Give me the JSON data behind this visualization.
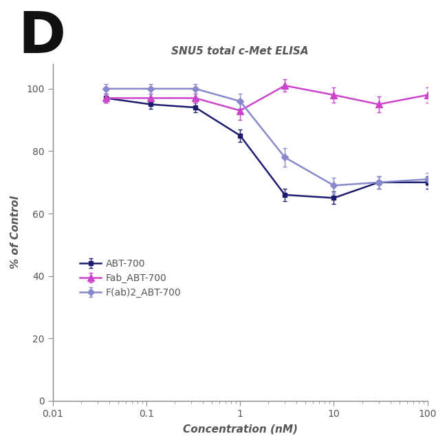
{
  "title": "SNU5 total c-Met ELISA",
  "panel_label": "D",
  "xlabel": "Concentration (nM)",
  "ylabel": "% of Control",
  "xlim": [
    0.01,
    100
  ],
  "ylim": [
    0,
    108
  ],
  "yticks": [
    0,
    20,
    40,
    60,
    80,
    100
  ],
  "fig_bg": "#ffffff",
  "ax_bg": "#ffffff",
  "series": [
    {
      "label": "ABT-700",
      "color": "#1c1c6e",
      "marker": "s",
      "markersize": 5,
      "linewidth": 1.8,
      "x": [
        0.037,
        0.111,
        0.333,
        1.0,
        3.0,
        10.0,
        30.0,
        100.0
      ],
      "y": [
        97,
        95,
        94,
        85,
        66,
        65,
        70,
        70
      ],
      "yerr": [
        1.5,
        1.5,
        1.5,
        2.0,
        2.0,
        2.0,
        2.0,
        2.0
      ]
    },
    {
      "label": "Fab_ABT-700",
      "color": "#cc44cc",
      "marker": "^",
      "markersize": 7,
      "linewidth": 1.8,
      "x": [
        0.037,
        0.111,
        0.333,
        1.0,
        3.0,
        10.0,
        30.0,
        100.0
      ],
      "y": [
        97,
        97,
        97,
        93,
        101,
        98,
        95,
        98
      ],
      "yerr": [
        1.5,
        1.5,
        1.5,
        3.0,
        2.0,
        2.5,
        2.5,
        2.5
      ]
    },
    {
      "label": "F(ab)2_ABT-700",
      "color": "#8888cc",
      "marker": "D",
      "markersize": 5,
      "linewidth": 1.8,
      "x": [
        0.037,
        0.111,
        0.333,
        1.0,
        3.0,
        10.0,
        30.0,
        100.0
      ],
      "y": [
        100,
        100,
        100,
        96,
        78,
        69,
        70,
        71
      ],
      "yerr": [
        1.5,
        1.5,
        1.5,
        2.5,
        3.0,
        2.5,
        2.0,
        2.0
      ]
    }
  ],
  "tick_color": "#555555",
  "label_color": "#555555",
  "spine_color": "#888888",
  "title_fontsize": 11,
  "label_fontsize": 11,
  "tick_fontsize": 10,
  "legend_fontsize": 10,
  "panel_fontsize": 60
}
